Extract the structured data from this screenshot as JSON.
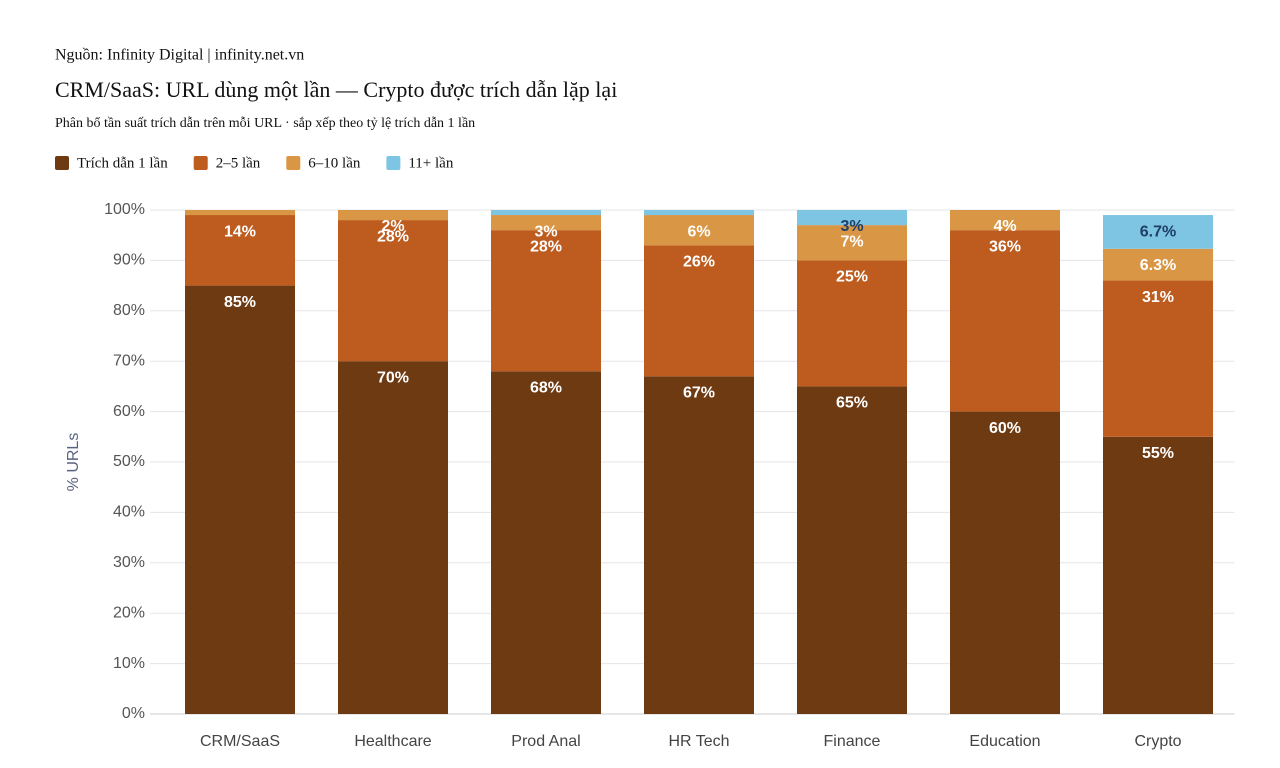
{
  "source": "Nguồn: Infinity Digital | infinity.net.vn",
  "chart_data": {
    "type": "stacked-bar",
    "title": "CRM/SaaS: URL dùng một lần — Crypto được trích dẫn lặp lại",
    "subtitle": "Phân bổ tần suất trích dẫn trên mỗi URL · sắp xếp theo tỷ lệ trích dẫn 1 lần",
    "y_label": "% URLs",
    "categories": [
      "CRM/SaaS",
      "Healthcare",
      "Prod Anal",
      "HR Tech",
      "Finance",
      "Education",
      "Crypto"
    ],
    "series": [
      {
        "name": "Trích dẫn 1 lần",
        "color": "#6e3a12",
        "values": [
          85,
          70,
          68,
          67,
          65,
          60,
          55
        ],
        "value_labels": [
          "85%",
          "70%",
          "68%",
          "67%",
          "65%",
          "60%",
          "55%"
        ]
      },
      {
        "name": "2–5 lần",
        "color": "#bd5c1e",
        "values": [
          14,
          28,
          28,
          26,
          25,
          36,
          31
        ],
        "value_labels": [
          "14%",
          "28%",
          "28%",
          "26%",
          "25%",
          "36%",
          "31%"
        ]
      },
      {
        "name": "6–10 lần",
        "color": "#d99644",
        "values": [
          1,
          2,
          3,
          6,
          7,
          4,
          6.3
        ],
        "value_labels": [
          null,
          "2%",
          "3%",
          "6%",
          "7%",
          "4%",
          "6.3%"
        ]
      },
      {
        "name": "11+ lần",
        "color": "#7ec4e3",
        "values": [
          0,
          0,
          1,
          1,
          3,
          0,
          6.7
        ],
        "value_labels": [
          null,
          null,
          null,
          null,
          "3%",
          null,
          "6.7%"
        ]
      }
    ],
    "ylim": [
      0,
      100
    ],
    "yticks": [
      {
        "value": 0,
        "label": "0%"
      },
      {
        "value": 10,
        "label": "10%"
      },
      {
        "value": 20,
        "label": "20%"
      },
      {
        "value": 30,
        "label": "30%"
      },
      {
        "value": 40,
        "label": "40%"
      },
      {
        "value": 50,
        "label": "50%"
      },
      {
        "value": 60,
        "label": "60%"
      },
      {
        "value": 70,
        "label": "70%"
      },
      {
        "value": 80,
        "label": "80%"
      },
      {
        "value": 90,
        "label": "90%"
      },
      {
        "value": 100,
        "label": "100%"
      }
    ],
    "grid": true,
    "legend": "top-left"
  }
}
